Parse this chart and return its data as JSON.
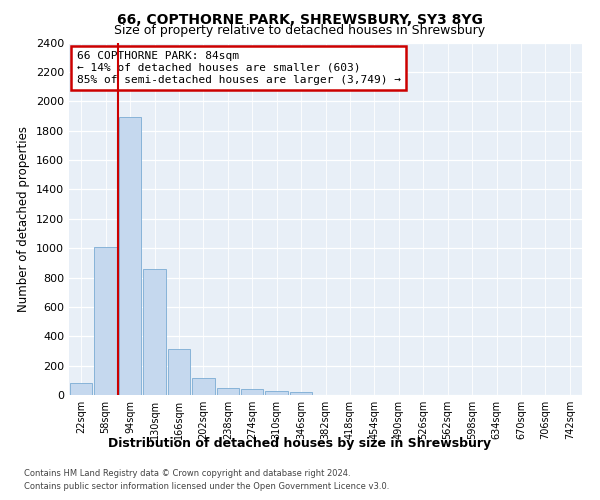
{
  "title": "66, COPTHORNE PARK, SHREWSBURY, SY3 8YG",
  "subtitle": "Size of property relative to detached houses in Shrewsbury",
  "xlabel": "Distribution of detached houses by size in Shrewsbury",
  "ylabel": "Number of detached properties",
  "bar_labels": [
    "22sqm",
    "58sqm",
    "94sqm",
    "130sqm",
    "166sqm",
    "202sqm",
    "238sqm",
    "274sqm",
    "310sqm",
    "346sqm",
    "382sqm",
    "418sqm",
    "454sqm",
    "490sqm",
    "526sqm",
    "562sqm",
    "598sqm",
    "634sqm",
    "670sqm",
    "706sqm",
    "742sqm"
  ],
  "bar_values": [
    85,
    1010,
    1890,
    860,
    315,
    115,
    50,
    40,
    30,
    20,
    0,
    0,
    0,
    0,
    0,
    0,
    0,
    0,
    0,
    0,
    0
  ],
  "bar_color": "#c5d8ee",
  "bar_edgecolor": "#7aabd4",
  "vline_pos": 1.5,
  "vline_color": "#cc0000",
  "annotation_text": "66 COPTHORNE PARK: 84sqm\n← 14% of detached houses are smaller (603)\n85% of semi-detached houses are larger (3,749) →",
  "annotation_box_facecolor": "#ffffff",
  "annotation_box_edgecolor": "#cc0000",
  "ylim": [
    0,
    2400
  ],
  "yticks": [
    0,
    200,
    400,
    600,
    800,
    1000,
    1200,
    1400,
    1600,
    1800,
    2000,
    2200,
    2400
  ],
  "axes_bg": "#e8eff7",
  "grid_color": "#ffffff",
  "footer_line1": "Contains HM Land Registry data © Crown copyright and database right 2024.",
  "footer_line2": "Contains public sector information licensed under the Open Government Licence v3.0."
}
